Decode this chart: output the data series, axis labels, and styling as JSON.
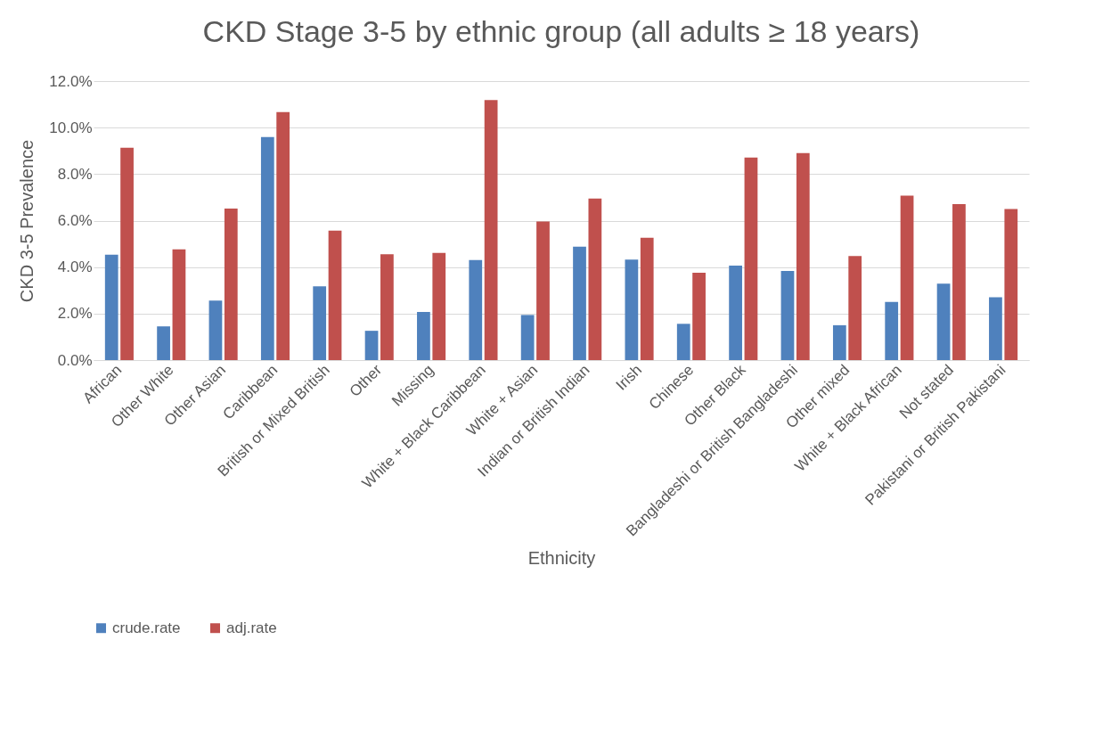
{
  "chart_data": {
    "type": "bar",
    "title": "CKD Stage 3-5 by ethnic group (all adults ≥ 18 years)",
    "xlabel": "Ethnicity",
    "ylabel": "CKD 3-5 Prevalence",
    "categories": [
      "African",
      "Other White",
      "Other Asian",
      "Caribbean",
      "British or Mixed British",
      "Other",
      "Missing",
      "White + Black Caribbean",
      "White + Asian",
      "Indian or British Indian",
      "Irish",
      "Chinese",
      "Other Black",
      "Bangladeshi or British Bangladeshi",
      "Other mixed",
      "White + Black African",
      "Not stated",
      "Pakistani or British Pakistani"
    ],
    "series": [
      {
        "name": "crude.rate",
        "color": "#4f81bd",
        "values": [
          4.53,
          1.45,
          2.56,
          9.59,
          3.17,
          1.26,
          2.07,
          4.3,
          1.94,
          4.88,
          4.32,
          1.56,
          4.06,
          3.83,
          1.5,
          2.5,
          3.29,
          2.7
        ]
      },
      {
        "name": "adj.rate",
        "color": "#c0504d",
        "values": [
          9.13,
          4.76,
          6.52,
          10.67,
          5.57,
          4.55,
          4.61,
          11.19,
          5.96,
          6.95,
          5.26,
          3.76,
          8.71,
          8.9,
          4.48,
          7.07,
          6.71,
          6.5
        ]
      }
    ],
    "ylim": [
      0,
      12
    ],
    "yticks": [
      {
        "value": 0,
        "label": "0.0%"
      },
      {
        "value": 2,
        "label": "2.0%"
      },
      {
        "value": 4,
        "label": "4.0%"
      },
      {
        "value": 6,
        "label": "6.0%"
      },
      {
        "value": 8,
        "label": "8.0%"
      },
      {
        "value": 10,
        "label": "10.0%"
      },
      {
        "value": 12,
        "label": "12.0%"
      }
    ],
    "grid": "y",
    "legend": "bottom"
  }
}
